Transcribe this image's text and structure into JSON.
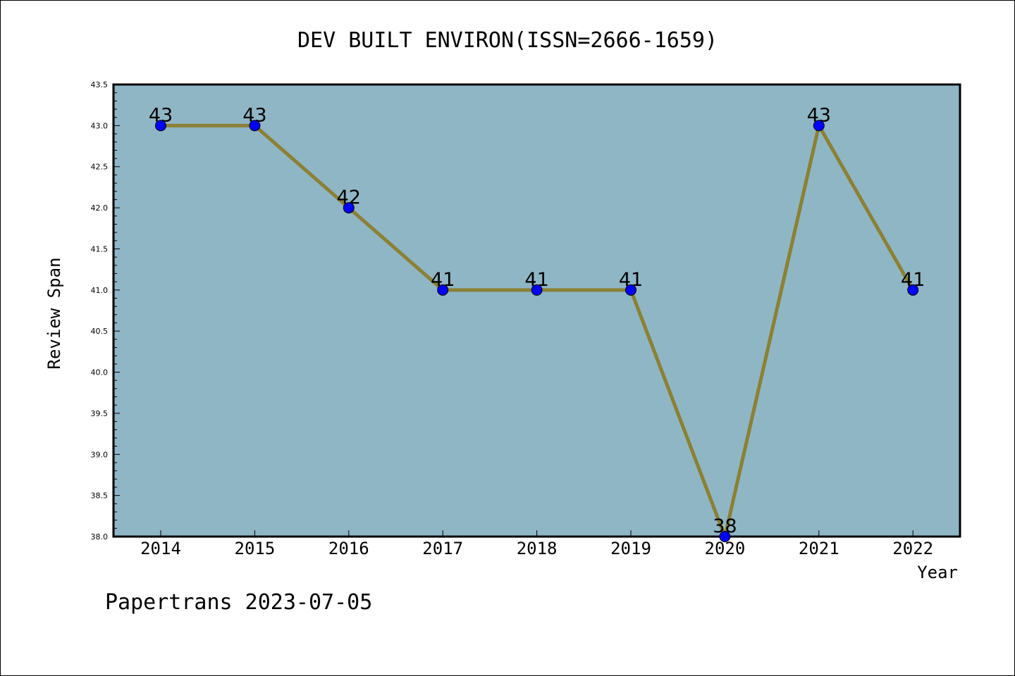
{
  "chart_data": {
    "type": "line",
    "title": "DEV BUILT ENVIRON(ISSN=2666-1659)",
    "xlabel": "Year",
    "ylabel": "Review Span",
    "categories": [
      "2014",
      "2015",
      "2016",
      "2017",
      "2018",
      "2019",
      "2020",
      "2021",
      "2022"
    ],
    "series": [
      {
        "values": [
          43,
          43,
          42,
          41,
          41,
          41,
          38,
          43,
          41
        ]
      }
    ],
    "data_labels": [
      "43",
      "43",
      "42",
      "41",
      "41",
      "41",
      "38",
      "43",
      "41"
    ],
    "ylim": [
      38.0,
      43.5
    ],
    "yticks": [
      "38.0",
      "38.5",
      "39.0",
      "39.5",
      "40.0",
      "40.5",
      "41.0",
      "41.5",
      "42.0",
      "42.5",
      "43.0",
      "43.5"
    ],
    "grid": false,
    "legend": "none",
    "colors": {
      "plot_background": "#8fb6c4",
      "line": "#8b8034",
      "marker": "#0000ff",
      "axis": "#000000"
    }
  },
  "footer": "Papertrans 2023-07-05"
}
